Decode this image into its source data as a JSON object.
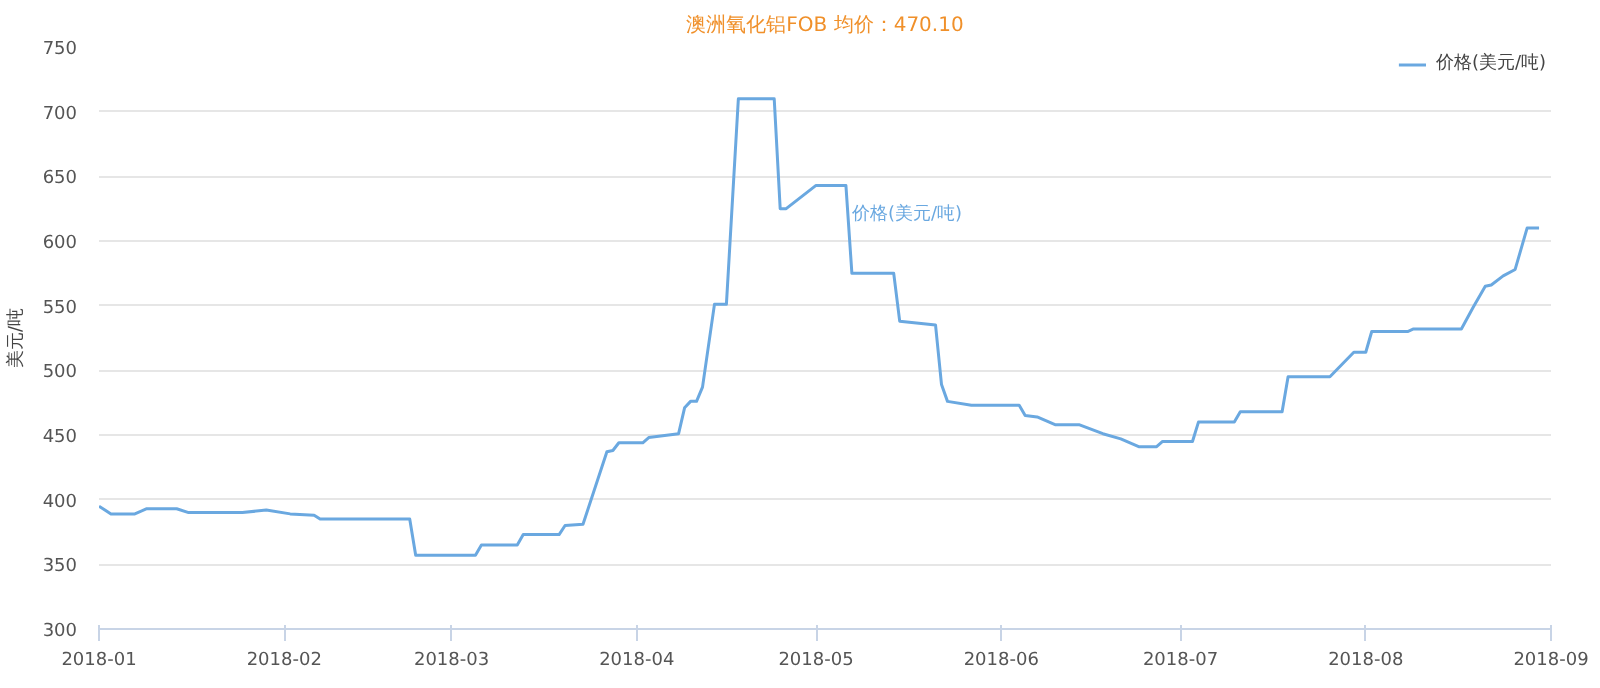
{
  "chart_data": {
    "type": "line",
    "title": "澳洲氧化铝FOB 均价：470.10",
    "ylabel": "美元/吨",
    "xlim": [
      "2018-01-01",
      "2018-09-01"
    ],
    "xticks": [
      "2018-01",
      "2018-02",
      "2018-03",
      "2018-04",
      "2018-05",
      "2018-06",
      "2018-07",
      "2018-08",
      "2018-09"
    ],
    "ylim": [
      300,
      750
    ],
    "yticks": [
      300,
      350,
      400,
      450,
      500,
      550,
      600,
      650,
      700,
      750
    ],
    "grid": "y",
    "legend": "top right",
    "marker": "none",
    "line_style": "solid",
    "annotations": [
      {
        "text": "价格(美元/吨)",
        "x": "2018-05-07",
        "y": 620
      }
    ],
    "series": [
      {
        "name": "价格(美元/吨)",
        "color": "#6aa8e0",
        "x": [
          "2018-01-01",
          "2018-01-03",
          "2018-01-07",
          "2018-01-09",
          "2018-01-14",
          "2018-01-16",
          "2018-01-25",
          "2018-01-29",
          "2018-02-02",
          "2018-02-06",
          "2018-02-07",
          "2018-02-22",
          "2018-02-23",
          "2018-03-05",
          "2018-03-06",
          "2018-03-12",
          "2018-03-13",
          "2018-03-19",
          "2018-03-20",
          "2018-03-23",
          "2018-03-27",
          "2018-03-28",
          "2018-03-29",
          "2018-04-02",
          "2018-04-03",
          "2018-04-08",
          "2018-04-09",
          "2018-04-10",
          "2018-04-11",
          "2018-04-12",
          "2018-04-14",
          "2018-04-16",
          "2018-04-18",
          "2018-04-24",
          "2018-04-25",
          "2018-04-26",
          "2018-05-01",
          "2018-05-06",
          "2018-05-07",
          "2018-05-14",
          "2018-05-15",
          "2018-05-21",
          "2018-05-22",
          "2018-05-23",
          "2018-05-27",
          "2018-06-04",
          "2018-06-05",
          "2018-06-07",
          "2018-06-10",
          "2018-06-14",
          "2018-06-18",
          "2018-06-21",
          "2018-06-24",
          "2018-06-27",
          "2018-06-28",
          "2018-07-03",
          "2018-07-04",
          "2018-07-10",
          "2018-07-11",
          "2018-07-18",
          "2018-07-19",
          "2018-07-26",
          "2018-07-30",
          "2018-08-01",
          "2018-08-02",
          "2018-08-08",
          "2018-08-09",
          "2018-08-17",
          "2018-08-19",
          "2018-08-21",
          "2018-08-22",
          "2018-08-24",
          "2018-08-26",
          "2018-08-28",
          "2018-08-30"
        ],
        "values": [
          395,
          389,
          389,
          393,
          393,
          390,
          390,
          392,
          389,
          388,
          385,
          385,
          357,
          357,
          365,
          365,
          373,
          373,
          380,
          381,
          437,
          438,
          444,
          444,
          448,
          451,
          471,
          476,
          476,
          487,
          551,
          551,
          710,
          710,
          625,
          625,
          643,
          643,
          575,
          575,
          538,
          535,
          489,
          476,
          473,
          473,
          465,
          464,
          458,
          458,
          451,
          447,
          441,
          441,
          445,
          445,
          460,
          460,
          468,
          468,
          495,
          495,
          514,
          514,
          530,
          530,
          532,
          532,
          549,
          565,
          566,
          573,
          578,
          610,
          610
        ]
      }
    ]
  }
}
